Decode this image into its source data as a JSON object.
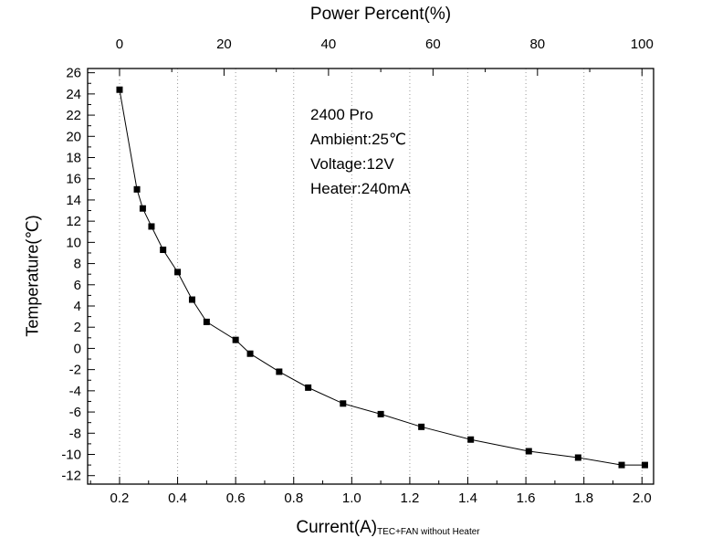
{
  "figure": {
    "background": "#ffffff",
    "top_axis_title": "Power Percent(%)",
    "y_axis_title": "Temperature(℃)",
    "x_axis_title": "Current(A)",
    "x_axis_subtitle": "TEC+FAN without Heater"
  },
  "annotation": {
    "lines": [
      "2400 Pro",
      "Ambient:25℃",
      "Voltage:12V",
      "Heater:240mA"
    ]
  },
  "chart_data": {
    "type": "scatter",
    "title": "",
    "xlabel": "Current(A)",
    "xlabel_note": "TEC+FAN without Heater",
    "ylabel": "Temperature(℃)",
    "top_axis_label": "Power Percent(%)",
    "series": [
      {
        "name": "TEC+FAN without Heater",
        "x": [
          0.2,
          0.26,
          0.28,
          0.31,
          0.35,
          0.4,
          0.45,
          0.5,
          0.6,
          0.65,
          0.75,
          0.85,
          0.97,
          1.1,
          1.24,
          1.41,
          1.61,
          1.78,
          1.93,
          2.01
        ],
        "y": [
          24.4,
          15.0,
          13.2,
          11.5,
          9.3,
          7.2,
          4.6,
          2.5,
          0.8,
          -0.5,
          -2.2,
          -3.7,
          -5.2,
          -6.2,
          -7.4,
          -8.6,
          -9.7,
          -10.3,
          -11.0,
          -11.0
        ]
      }
    ],
    "marker": "square",
    "marker_color": "#000000",
    "line_color": "#000000",
    "grid": "vertical-dotted",
    "grid_color": "#999999",
    "xlim": [
      0.09,
      2.04
    ],
    "ylim": [
      -12.8,
      26.4
    ],
    "x_ticks": [
      0.2,
      0.4,
      0.6,
      0.8,
      1.0,
      1.2,
      1.4,
      1.6,
      1.8,
      2.0
    ],
    "x_minor_ticks": [
      0.1,
      0.3,
      0.5,
      0.7,
      0.9,
      1.1,
      1.3,
      1.5,
      1.7,
      1.9
    ],
    "y_ticks": [
      -12,
      -10,
      -8,
      -6,
      -4,
      -2,
      0,
      2,
      4,
      6,
      8,
      10,
      12,
      14,
      16,
      18,
      20,
      22,
      24,
      26
    ],
    "y_minor_ticks": [
      -11,
      -9,
      -7,
      -5,
      -3,
      -1,
      1,
      3,
      5,
      7,
      9,
      11,
      13,
      15,
      17,
      19,
      21,
      23,
      25
    ],
    "top_ticks": [
      0,
      20,
      40,
      60,
      80,
      100
    ],
    "top_minor_ticks": [
      10,
      30,
      50,
      70,
      90
    ],
    "top_axis_range_maps_to_current": [
      0.2,
      2.0
    ],
    "legend_position": "none"
  }
}
